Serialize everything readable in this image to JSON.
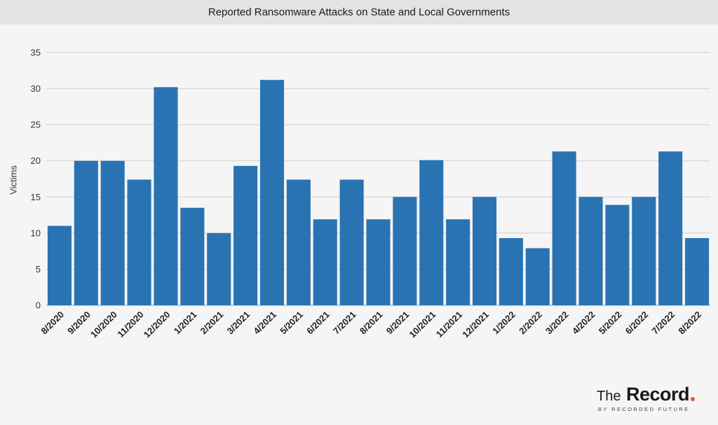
{
  "title": "Reported Ransomware Attacks on State and Local Governments",
  "brand": {
    "the": "The",
    "record": "Record",
    "sub": "BY RECORDED FUTURE",
    "dot_color": "#e8562a"
  },
  "chart_data": {
    "type": "bar",
    "ylabel": "Victims",
    "ylim": [
      0,
      35
    ],
    "yticks": [
      0,
      5,
      10,
      15,
      20,
      25,
      30,
      35
    ],
    "grid": true,
    "bar_color": "#2a73b3",
    "categories": [
      "8/2020",
      "9/2020",
      "10/2020",
      "11/2020",
      "12/2020",
      "1/2021",
      "2/2021",
      "3/2021",
      "4/2021",
      "5/2021",
      "6/2021",
      "7/2021",
      "8/2021",
      "9/2021",
      "10/2021",
      "11/2021",
      "12/2021",
      "1/2022",
      "2/2022",
      "3/2022",
      "4/2022",
      "5/2022",
      "6/2022",
      "7/2022",
      "8/2022"
    ],
    "values": [
      11,
      20,
      20,
      17.4,
      30.2,
      13.5,
      10,
      19.3,
      31.2,
      17.4,
      11.9,
      17.4,
      11.9,
      15,
      20.1,
      11.9,
      15,
      9.3,
      7.9,
      21.3,
      15,
      13.9,
      15,
      21.3,
      9.3
    ]
  }
}
